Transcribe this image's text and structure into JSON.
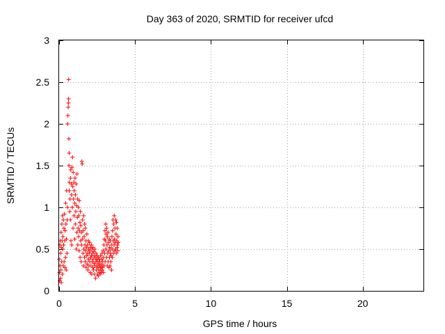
{
  "chart_data": {
    "type": "scatter",
    "title": "Day 363 of 2020, SRMTID for receiver ufcd",
    "xlabel": "GPS time / hours",
    "ylabel": "SRMTID / TECUs",
    "xlim": [
      0,
      24
    ],
    "ylim": [
      0,
      3
    ],
    "xticks": [
      0,
      5,
      10,
      15,
      20
    ],
    "xtick_labels": [
      "0",
      "5",
      "10",
      "15",
      "20"
    ],
    "yticks": [
      0,
      0.5,
      1,
      1.5,
      2,
      2.5,
      3
    ],
    "ytick_labels": [
      "0",
      "0.5",
      "1",
      "1.5",
      "2",
      "2.5",
      "3"
    ],
    "grid": true,
    "marker": "+",
    "color": "#ff0000",
    "series": [
      {
        "name": "SRMTID",
        "points": [
          [
            0.0,
            0.38
          ],
          [
            0.02,
            0.22
          ],
          [
            0.04,
            0.12
          ],
          [
            0.05,
            0.55
          ],
          [
            0.06,
            0.3
          ],
          [
            0.08,
            0.6
          ],
          [
            0.09,
            0.15
          ],
          [
            0.1,
            0.45
          ],
          [
            0.12,
            0.25
          ],
          [
            0.13,
            0.7
          ],
          [
            0.14,
            0.1
          ],
          [
            0.15,
            0.52
          ],
          [
            0.17,
            0.35
          ],
          [
            0.18,
            0.8
          ],
          [
            0.2,
            0.6
          ],
          [
            0.21,
            0.2
          ],
          [
            0.22,
            0.9
          ],
          [
            0.24,
            0.5
          ],
          [
            0.25,
            0.65
          ],
          [
            0.27,
            0.3
          ],
          [
            0.28,
            0.85
          ],
          [
            0.3,
            0.55
          ],
          [
            0.32,
            0.75
          ],
          [
            0.33,
            0.35
          ],
          [
            0.35,
            0.92
          ],
          [
            0.37,
            0.6
          ],
          [
            0.38,
            0.28
          ],
          [
            0.4,
            0.72
          ],
          [
            0.42,
            0.4
          ],
          [
            0.43,
            1.05
          ],
          [
            0.45,
            0.8
          ],
          [
            0.47,
            0.25
          ],
          [
            0.48,
            0.62
          ],
          [
            0.5,
            1.2
          ],
          [
            0.52,
            0.45
          ],
          [
            0.53,
            0.85
          ],
          [
            0.55,
            1.0
          ],
          [
            0.56,
            2.0
          ],
          [
            0.58,
            2.1
          ],
          [
            0.6,
            2.2
          ],
          [
            0.61,
            2.25
          ],
          [
            0.62,
            2.3
          ],
          [
            0.63,
            2.53
          ],
          [
            0.64,
            1.82
          ],
          [
            0.65,
            1.5
          ],
          [
            0.66,
            1.65
          ],
          [
            0.67,
            1.2
          ],
          [
            0.68,
            1.3
          ],
          [
            0.7,
            0.95
          ],
          [
            0.72,
            1.1
          ],
          [
            0.74,
            0.85
          ],
          [
            0.75,
            1.35
          ],
          [
            0.77,
            1.45
          ],
          [
            0.78,
            0.6
          ],
          [
            0.8,
            1.28
          ],
          [
            0.82,
            1.15
          ],
          [
            0.83,
            0.55
          ],
          [
            0.85,
            1.48
          ],
          [
            0.87,
            1.0
          ],
          [
            0.88,
            1.6
          ],
          [
            0.9,
            1.25
          ],
          [
            0.92,
            0.75
          ],
          [
            0.93,
            1.42
          ],
          [
            0.95,
            1.1
          ],
          [
            0.97,
            1.3
          ],
          [
            0.98,
            0.9
          ],
          [
            1.0,
            1.2
          ],
          [
            1.02,
            1.05
          ],
          [
            1.03,
            0.62
          ],
          [
            1.05,
            1.35
          ],
          [
            1.07,
            0.8
          ],
          [
            1.08,
            1.15
          ],
          [
            1.1,
            0.95
          ],
          [
            1.12,
            1.28
          ],
          [
            1.13,
            0.5
          ],
          [
            1.15,
            1.02
          ],
          [
            1.17,
            0.7
          ],
          [
            1.18,
            1.4
          ],
          [
            1.2,
            0.88
          ],
          [
            1.22,
            1.1
          ],
          [
            1.23,
            0.55
          ],
          [
            1.25,
            0.75
          ],
          [
            1.27,
            1.0
          ],
          [
            1.28,
            0.65
          ],
          [
            1.3,
            0.9
          ],
          [
            1.32,
            0.48
          ],
          [
            1.33,
            1.08
          ],
          [
            1.35,
            0.72
          ],
          [
            1.37,
            0.82
          ],
          [
            1.38,
            0.4
          ],
          [
            1.4,
            0.95
          ],
          [
            1.42,
            0.6
          ],
          [
            1.43,
            0.78
          ],
          [
            1.45,
            0.35
          ],
          [
            1.47,
            0.7
          ],
          [
            1.48,
            0.55
          ],
          [
            1.5,
            1.55
          ],
          [
            1.52,
            1.52
          ],
          [
            1.53,
            0.62
          ],
          [
            1.55,
            0.85
          ],
          [
            1.57,
            0.45
          ],
          [
            1.58,
            0.72
          ],
          [
            1.6,
            0.3
          ],
          [
            1.62,
            0.9
          ],
          [
            1.63,
            0.5
          ],
          [
            1.65,
            0.65
          ],
          [
            1.67,
            0.4
          ],
          [
            1.68,
            0.8
          ],
          [
            1.7,
            0.55
          ],
          [
            1.72,
            0.35
          ],
          [
            1.73,
            0.75
          ],
          [
            1.75,
            0.48
          ],
          [
            1.77,
            0.6
          ],
          [
            1.78,
            0.28
          ],
          [
            1.8,
            0.52
          ],
          [
            1.82,
            0.42
          ],
          [
            1.83,
            0.68
          ],
          [
            1.85,
            0.32
          ],
          [
            1.87,
            0.55
          ],
          [
            1.88,
            0.45
          ],
          [
            1.9,
            0.25
          ],
          [
            1.92,
            0.6
          ],
          [
            1.93,
            0.38
          ],
          [
            1.95,
            0.5
          ],
          [
            1.97,
            0.3
          ],
          [
            1.98,
            0.45
          ],
          [
            2.0,
            0.58
          ],
          [
            2.02,
            0.35
          ],
          [
            2.03,
            0.48
          ],
          [
            2.05,
            0.22
          ],
          [
            2.07,
            0.52
          ],
          [
            2.08,
            0.4
          ],
          [
            2.1,
            0.3
          ],
          [
            2.12,
            0.55
          ],
          [
            2.13,
            0.42
          ],
          [
            2.15,
            0.2
          ],
          [
            2.17,
            0.5
          ],
          [
            2.18,
            0.35
          ],
          [
            2.2,
            0.45
          ],
          [
            2.22,
            0.28
          ],
          [
            2.23,
            0.52
          ],
          [
            2.25,
            0.38
          ],
          [
            2.27,
            0.25
          ],
          [
            2.28,
            0.47
          ],
          [
            2.3,
            0.33
          ],
          [
            2.32,
            0.42
          ],
          [
            2.33,
            0.2
          ],
          [
            2.35,
            0.5
          ],
          [
            2.37,
            0.3
          ],
          [
            2.38,
            0.4
          ],
          [
            2.4,
            0.15
          ],
          [
            2.42,
            0.35
          ],
          [
            2.43,
            0.45
          ],
          [
            2.45,
            0.25
          ],
          [
            2.47,
            0.38
          ],
          [
            2.48,
            0.3
          ],
          [
            2.5,
            0.42
          ],
          [
            2.52,
            0.2
          ],
          [
            2.53,
            0.35
          ],
          [
            2.55,
            0.28
          ],
          [
            2.57,
            0.4
          ],
          [
            2.58,
            0.18
          ],
          [
            2.6,
            0.32
          ],
          [
            2.62,
            0.25
          ],
          [
            2.63,
            0.38
          ],
          [
            2.65,
            0.22
          ],
          [
            2.67,
            0.3
          ],
          [
            2.68,
            0.35
          ],
          [
            2.7,
            0.2
          ],
          [
            2.72,
            0.28
          ],
          [
            2.73,
            0.42
          ],
          [
            2.75,
            0.25
          ],
          [
            2.77,
            0.32
          ],
          [
            2.78,
            0.22
          ],
          [
            2.8,
            0.38
          ],
          [
            2.82,
            0.28
          ],
          [
            2.83,
            0.45
          ],
          [
            2.85,
            0.25
          ],
          [
            2.87,
            0.35
          ],
          [
            2.88,
            0.3
          ],
          [
            2.9,
            0.48
          ],
          [
            2.92,
            0.22
          ],
          [
            2.93,
            0.4
          ],
          [
            2.95,
            0.55
          ],
          [
            2.97,
            0.3
          ],
          [
            2.98,
            0.62
          ],
          [
            3.0,
            0.45
          ],
          [
            3.02,
            0.72
          ],
          [
            3.03,
            0.35
          ],
          [
            3.05,
            0.6
          ],
          [
            3.07,
            0.8
          ],
          [
            3.08,
            0.5
          ],
          [
            3.1,
            0.68
          ],
          [
            3.12,
            0.4
          ],
          [
            3.13,
            0.75
          ],
          [
            3.15,
            0.55
          ],
          [
            3.17,
            0.3
          ],
          [
            3.18,
            0.65
          ],
          [
            3.2,
            0.45
          ],
          [
            3.22,
            0.7
          ],
          [
            3.23,
            0.35
          ],
          [
            3.25,
            0.58
          ],
          [
            3.27,
            0.48
          ],
          [
            3.28,
            0.28
          ],
          [
            3.3,
            0.62
          ],
          [
            3.32,
            0.4
          ],
          [
            3.33,
            0.52
          ],
          [
            3.35,
            0.3
          ],
          [
            3.37,
            0.45
          ],
          [
            3.38,
            0.6
          ],
          [
            3.4,
            0.35
          ],
          [
            3.42,
            0.5
          ],
          [
            3.43,
            0.42
          ],
          [
            3.45,
            0.25
          ],
          [
            3.47,
            0.55
          ],
          [
            3.48,
            0.65
          ],
          [
            3.5,
            0.4
          ],
          [
            3.52,
            0.72
          ],
          [
            3.53,
            0.5
          ],
          [
            3.55,
            0.85
          ],
          [
            3.57,
            0.6
          ],
          [
            3.58,
            0.45
          ],
          [
            3.6,
            0.8
          ],
          [
            3.62,
            0.55
          ],
          [
            3.63,
            0.9
          ],
          [
            3.65,
            0.62
          ],
          [
            3.67,
            0.48
          ],
          [
            3.68,
            0.75
          ],
          [
            3.7,
            0.58
          ],
          [
            3.72,
            0.85
          ],
          [
            3.73,
            0.5
          ],
          [
            3.75,
            0.68
          ],
          [
            3.77,
            0.45
          ],
          [
            3.78,
            0.82
          ],
          [
            3.8,
            0.6
          ],
          [
            3.82,
            0.52
          ],
          [
            3.83,
            0.75
          ],
          [
            3.85,
            0.55
          ],
          [
            3.87,
            0.48
          ],
          [
            3.88,
            0.65
          ],
          [
            3.9,
            0.58
          ]
        ]
      }
    ]
  }
}
